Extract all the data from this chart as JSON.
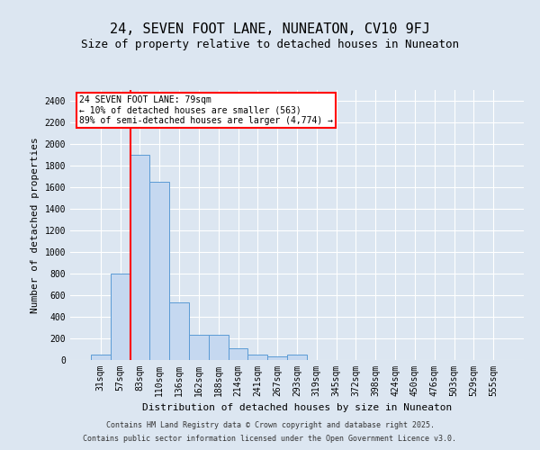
{
  "title": "24, SEVEN FOOT LANE, NUNEATON, CV10 9FJ",
  "subtitle": "Size of property relative to detached houses in Nuneaton",
  "xlabel": "Distribution of detached houses by size in Nuneaton",
  "ylabel": "Number of detached properties",
  "footer_line1": "Contains HM Land Registry data © Crown copyright and database right 2025.",
  "footer_line2": "Contains public sector information licensed under the Open Government Licence v3.0.",
  "categories": [
    "31sqm",
    "57sqm",
    "83sqm",
    "110sqm",
    "136sqm",
    "162sqm",
    "188sqm",
    "214sqm",
    "241sqm",
    "267sqm",
    "293sqm",
    "319sqm",
    "345sqm",
    "372sqm",
    "398sqm",
    "424sqm",
    "450sqm",
    "476sqm",
    "503sqm",
    "529sqm",
    "555sqm"
  ],
  "values": [
    50,
    800,
    1900,
    1650,
    530,
    230,
    230,
    110,
    50,
    30,
    50,
    0,
    0,
    0,
    0,
    0,
    0,
    0,
    0,
    0,
    0
  ],
  "bar_color": "#c5d8f0",
  "bar_edge_color": "#5b9bd5",
  "highlight_color": "#ff0000",
  "annotation_text_line1": "24 SEVEN FOOT LANE: 79sqm",
  "annotation_text_line2": "← 10% of detached houses are smaller (563)",
  "annotation_text_line3": "89% of semi-detached houses are larger (4,774) →",
  "ylim": [
    0,
    2500
  ],
  "yticks": [
    0,
    200,
    400,
    600,
    800,
    1000,
    1200,
    1400,
    1600,
    1800,
    2000,
    2200,
    2400
  ],
  "background_color": "#dce6f1",
  "plot_bg_color": "#dce6f1",
  "grid_color": "#ffffff",
  "title_fontsize": 11,
  "subtitle_fontsize": 9,
  "axis_label_fontsize": 8,
  "tick_fontsize": 7,
  "footer_fontsize": 6,
  "annotation_fontsize": 7
}
